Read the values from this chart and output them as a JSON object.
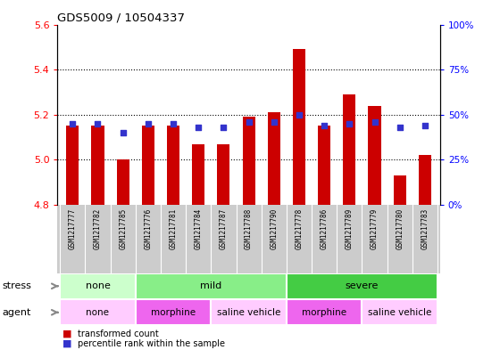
{
  "title": "GDS5009 / 10504337",
  "samples": [
    "GSM1217777",
    "GSM1217782",
    "GSM1217785",
    "GSM1217776",
    "GSM1217781",
    "GSM1217784",
    "GSM1217787",
    "GSM1217788",
    "GSM1217790",
    "GSM1217778",
    "GSM1217786",
    "GSM1217789",
    "GSM1217779",
    "GSM1217780",
    "GSM1217783"
  ],
  "bar_values": [
    5.15,
    5.15,
    5.0,
    5.15,
    5.15,
    5.07,
    5.07,
    5.19,
    5.21,
    5.49,
    5.15,
    5.29,
    5.24,
    4.93,
    5.02
  ],
  "bar_base": 4.8,
  "ylim": [
    4.8,
    5.6
  ],
  "yticks": [
    4.8,
    5.0,
    5.2,
    5.4,
    5.6
  ],
  "yticks_right": [
    0,
    25,
    50,
    75,
    100
  ],
  "right_ylim": [
    0,
    100
  ],
  "bar_color": "#cc0000",
  "dot_color": "#3333cc",
  "dot_percentile_raw": [
    45,
    45,
    40,
    45,
    45,
    43,
    43,
    46,
    46,
    50,
    44,
    45,
    46,
    43,
    44
  ],
  "stress_groups": [
    {
      "label": "none",
      "start": 0,
      "end": 3,
      "color": "#ccffcc"
    },
    {
      "label": "mild",
      "start": 3,
      "end": 9,
      "color": "#88ee88"
    },
    {
      "label": "severe",
      "start": 9,
      "end": 15,
      "color": "#44cc44"
    }
  ],
  "agent_groups": [
    {
      "label": "none",
      "start": 0,
      "end": 3,
      "color": "#ffccff"
    },
    {
      "label": "morphine",
      "start": 3,
      "end": 6,
      "color": "#ee66ee"
    },
    {
      "label": "saline vehicle",
      "start": 6,
      "end": 9,
      "color": "#ffccff"
    },
    {
      "label": "morphine",
      "start": 9,
      "end": 12,
      "color": "#ee66ee"
    },
    {
      "label": "saline vehicle",
      "start": 12,
      "end": 15,
      "color": "#ffccff"
    }
  ],
  "stress_label": "stress",
  "agent_label": "agent",
  "legend1": "transformed count",
  "legend2": "percentile rank within the sample",
  "grid_lines": [
    5.0,
    5.2,
    5.4
  ],
  "xtick_bg_color": "#cccccc"
}
